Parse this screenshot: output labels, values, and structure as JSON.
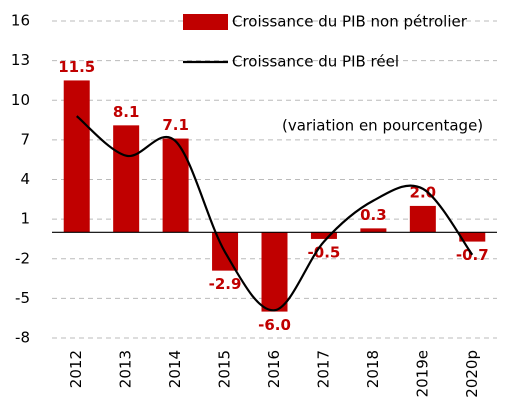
{
  "chart_data": {
    "type": "bar",
    "categories": [
      "2012",
      "2013",
      "2014",
      "2015",
      "2016",
      "2017",
      "2018",
      "2019e",
      "2020p"
    ],
    "series": [
      {
        "name": "Croissance du PIB non pétrolier",
        "type": "bar",
        "color": "#c00000",
        "values": [
          11.5,
          8.1,
          7.1,
          -2.9,
          -6.0,
          -0.5,
          0.3,
          2.0,
          -0.7
        ],
        "value_labels": [
          "11.5",
          "8.1",
          "7.1",
          "-2.9",
          "-6.0",
          "-0.5",
          "0.3",
          "2.0",
          "-0.7"
        ]
      },
      {
        "name": "Croissance du PIB réel",
        "type": "line",
        "color": "#000000",
        "values": [
          8.8,
          5.8,
          6.9,
          -1.5,
          -5.9,
          -0.7,
          2.4,
          3.3,
          -1.7
        ]
      }
    ],
    "annotation": "(variation en pourcentage)",
    "ylim": [
      -8,
      16
    ],
    "yticks": [
      -8,
      -5,
      -2,
      1,
      4,
      7,
      10,
      13,
      16
    ],
    "grid": true
  }
}
